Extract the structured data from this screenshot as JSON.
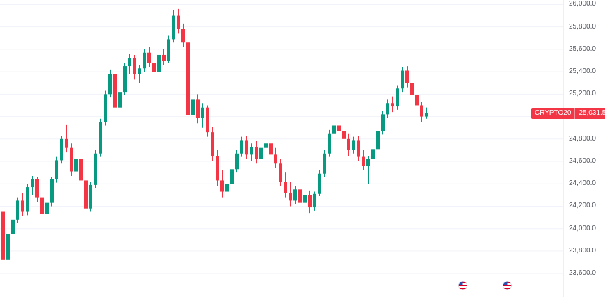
{
  "colors": {
    "up": "#089981",
    "down": "#f23645",
    "last_price_line": "#f23645",
    "badge_bg": "#f23645",
    "badge_text": "#ffffff",
    "grid": "#f0f3fa",
    "axis_text": "#50535e",
    "background": "#ffffff"
  },
  "icons": {
    "event_marker_1": "us-flag-icon",
    "event_marker_2": "us-flag-icon"
  },
  "chart_data": {
    "type": "candlestick",
    "title": "",
    "xlabel": "",
    "ylabel": "",
    "ylim": [
      23390,
      26040
    ],
    "grid": "horizontal",
    "legend": "none",
    "last_price": {
      "value": 25031.5,
      "label": "25,031.5",
      "symbol": "CRYPTO20"
    },
    "y_ticks": [
      {
        "value": 26000,
        "label": "26,000.0"
      },
      {
        "value": 25800,
        "label": "25,800.0"
      },
      {
        "value": 25600,
        "label": "25,600.0"
      },
      {
        "value": 25400,
        "label": "25,400.0"
      },
      {
        "value": 25200,
        "label": "25,200.0"
      },
      {
        "value": 25000,
        "label": "25,000.0"
      },
      {
        "value": 24800,
        "label": "24,800.0"
      },
      {
        "value": 24600,
        "label": "24,600.0"
      },
      {
        "value": 24400,
        "label": "24,400.0"
      },
      {
        "value": 24200,
        "label": "24,200.0"
      },
      {
        "value": 24000,
        "label": "24,000.0"
      },
      {
        "value": 23800,
        "label": "23,800.0"
      },
      {
        "value": 23600,
        "label": "23,600.0"
      }
    ],
    "candles_format": "[open, high, low, close]",
    "candles": [
      [
        24150,
        24180,
        23650,
        23720
      ],
      [
        23720,
        23980,
        23690,
        23950
      ],
      [
        23950,
        24120,
        23900,
        24080
      ],
      [
        24080,
        24280,
        24050,
        24250
      ],
      [
        24250,
        24320,
        24110,
        24150
      ],
      [
        24150,
        24400,
        24120,
        24370
      ],
      [
        24370,
        24470,
        24300,
        24440
      ],
      [
        24440,
        24460,
        24240,
        24280
      ],
      [
        24280,
        24320,
        24080,
        24130
      ],
      [
        24130,
        24260,
        24040,
        24230
      ],
      [
        24230,
        24460,
        24200,
        24440
      ],
      [
        24440,
        24640,
        24410,
        24610
      ],
      [
        24610,
        24830,
        24580,
        24800
      ],
      [
        24800,
        24930,
        24680,
        24720
      ],
      [
        24720,
        24760,
        24470,
        24510
      ],
      [
        24510,
        24650,
        24440,
        24620
      ],
      [
        24620,
        24660,
        24380,
        24430
      ],
      [
        24430,
        24480,
        24120,
        24180
      ],
      [
        24180,
        24420,
        24150,
        24390
      ],
      [
        24390,
        24700,
        24360,
        24670
      ],
      [
        24670,
        24980,
        24640,
        24950
      ],
      [
        24950,
        25230,
        24920,
        25200
      ],
      [
        25200,
        25420,
        25170,
        25380
      ],
      [
        25380,
        25400,
        25030,
        25080
      ],
      [
        25080,
        25250,
        25040,
        25220
      ],
      [
        25220,
        25480,
        25190,
        25450
      ],
      [
        25450,
        25560,
        25380,
        25520
      ],
      [
        25520,
        25550,
        25330,
        25380
      ],
      [
        25380,
        25460,
        25300,
        25430
      ],
      [
        25430,
        25600,
        25400,
        25570
      ],
      [
        25570,
        25620,
        25440,
        25480
      ],
      [
        25480,
        25540,
        25350,
        25400
      ],
      [
        25400,
        25580,
        25380,
        25550
      ],
      [
        25550,
        25600,
        25460,
        25500
      ],
      [
        25500,
        25720,
        25480,
        25690
      ],
      [
        25690,
        25950,
        25660,
        25900
      ],
      [
        25900,
        25960,
        25740,
        25780
      ],
      [
        25780,
        25830,
        25620,
        25660
      ],
      [
        25660,
        25700,
        24930,
        25010
      ],
      [
        25010,
        25180,
        24960,
        25150
      ],
      [
        25150,
        25200,
        24940,
        24990
      ],
      [
        24990,
        25120,
        24900,
        25080
      ],
      [
        25080,
        25100,
        24820,
        24860
      ],
      [
        24860,
        24910,
        24600,
        24650
      ],
      [
        24650,
        24700,
        24380,
        24430
      ],
      [
        24430,
        24520,
        24280,
        24330
      ],
      [
        24330,
        24430,
        24240,
        24400
      ],
      [
        24400,
        24560,
        24370,
        24530
      ],
      [
        24530,
        24700,
        24500,
        24670
      ],
      [
        24670,
        24820,
        24640,
        24790
      ],
      [
        24790,
        24830,
        24620,
        24660
      ],
      [
        24660,
        24760,
        24600,
        24730
      ],
      [
        24730,
        24780,
        24580,
        24620
      ],
      [
        24620,
        24750,
        24590,
        24720
      ],
      [
        24720,
        24790,
        24640,
        24760
      ],
      [
        24760,
        24800,
        24620,
        24660
      ],
      [
        24660,
        24720,
        24540,
        24580
      ],
      [
        24580,
        24620,
        24380,
        24420
      ],
      [
        24420,
        24500,
        24280,
        24320
      ],
      [
        24320,
        24420,
        24200,
        24250
      ],
      [
        24250,
        24380,
        24220,
        24350
      ],
      [
        24350,
        24400,
        24180,
        24230
      ],
      [
        24230,
        24330,
        24160,
        24300
      ],
      [
        24300,
        24340,
        24140,
        24190
      ],
      [
        24190,
        24330,
        24160,
        24310
      ],
      [
        24310,
        24520,
        24290,
        24490
      ],
      [
        24490,
        24700,
        24460,
        24670
      ],
      [
        24670,
        24880,
        24640,
        24850
      ],
      [
        24850,
        24950,
        24780,
        24920
      ],
      [
        24920,
        25010,
        24830,
        24870
      ],
      [
        24870,
        24940,
        24760,
        24800
      ],
      [
        24800,
        24850,
        24650,
        24700
      ],
      [
        24700,
        24820,
        24670,
        24790
      ],
      [
        24790,
        24830,
        24600,
        24640
      ],
      [
        24640,
        24700,
        24520,
        24560
      ],
      [
        24560,
        24650,
        24400,
        24620
      ],
      [
        24620,
        24740,
        24580,
        24710
      ],
      [
        24710,
        24900,
        24690,
        24870
      ],
      [
        24870,
        25050,
        24840,
        25020
      ],
      [
        25020,
        25150,
        24990,
        25120
      ],
      [
        25120,
        25180,
        25040,
        25090
      ],
      [
        25090,
        25280,
        25060,
        25250
      ],
      [
        25250,
        25440,
        25220,
        25410
      ],
      [
        25410,
        25450,
        25260,
        25300
      ],
      [
        25300,
        25350,
        25150,
        25190
      ],
      [
        25190,
        25240,
        25060,
        25100
      ],
      [
        25100,
        25130,
        24950,
        25000
      ],
      [
        25000,
        25080,
        24980,
        25031.5
      ]
    ]
  }
}
